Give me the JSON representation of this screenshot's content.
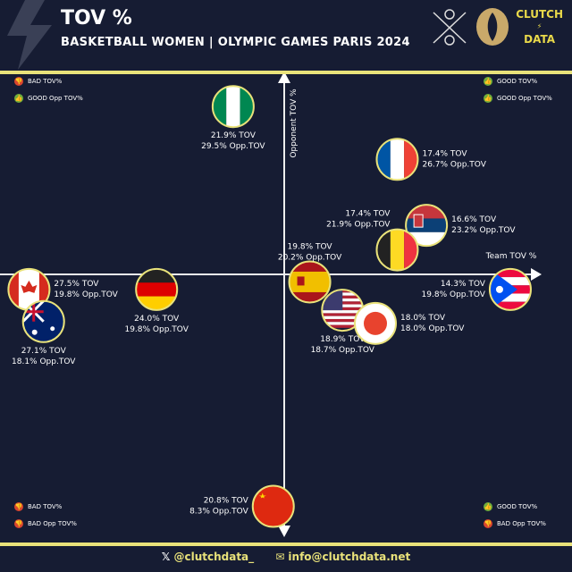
{
  "header": {
    "title": "TOV %",
    "subtitle": "BASKETBALL WOMEN | OLYMPIC GAMES PARIS 2024",
    "brand_top": "CLUTCH",
    "brand_bottom": "DATA"
  },
  "legends": {
    "top_left": [
      {
        "icon": "thumbs-down",
        "label": "BAD TOV%"
      },
      {
        "icon": "thumbs-up",
        "label": "GOOD Opp TOV%"
      }
    ],
    "top_right": [
      {
        "icon": "thumbs-up",
        "label": "GOOD TOV%"
      },
      {
        "icon": "thumbs-up",
        "label": "GOOD Opp TOV%"
      }
    ],
    "bottom_left": [
      {
        "icon": "thumbs-down",
        "label": "BAD TOV%"
      },
      {
        "icon": "thumbs-down",
        "label": "BAD Opp TOV%"
      }
    ],
    "bottom_right": [
      {
        "icon": "thumbs-up",
        "label": "GOOD TOV%"
      },
      {
        "icon": "thumbs-down",
        "label": "BAD Opp TOV%"
      }
    ]
  },
  "footer": {
    "twitter": "@clutchdata_",
    "email": "info@clutchdata.net"
  },
  "colors": {
    "background": "#161c33",
    "accent": "#e9e27a",
    "bad": "#d9452f",
    "good": "#6fae3c"
  },
  "chart_data": {
    "type": "scatter",
    "xlabel": "Team TOV %",
    "ylabel": "Opponent TOV %",
    "x_reversed": true,
    "x_center": 20.5,
    "y_center": 20.6,
    "points": [
      {
        "team": "Nigeria",
        "flag": "NGA",
        "x": 21.9,
        "y": 29.5,
        "label1": "21.9% TOV",
        "label2": "29.5% Opp.TOV"
      },
      {
        "team": "France",
        "flag": "FRA",
        "x": 17.4,
        "y": 26.7,
        "label1": "17.4% TOV",
        "label2": "26.7% Opp.TOV"
      },
      {
        "team": "Serbia",
        "flag": "SRB",
        "x": 16.6,
        "y": 23.2,
        "label1": "16.6% TOV",
        "label2": "23.2% Opp.TOV"
      },
      {
        "team": "Belgium",
        "flag": "BEL",
        "x": 17.4,
        "y": 21.9,
        "label1": "17.4% TOV",
        "label2": "21.9% Opp.TOV"
      },
      {
        "team": "Spain",
        "flag": "ESP",
        "x": 19.8,
        "y": 20.2,
        "label1": "19.8% TOV",
        "label2": "20.2% Opp.TOV"
      },
      {
        "team": "Puerto Rico",
        "flag": "PUR",
        "x": 14.3,
        "y": 19.8,
        "label1": "14.3% TOV",
        "label2": "19.8% Opp.TOV"
      },
      {
        "team": "Canada",
        "flag": "CAN",
        "x": 27.5,
        "y": 19.8,
        "label1": "27.5% TOV",
        "label2": "19.8% Opp.TOV"
      },
      {
        "team": "Germany",
        "flag": "GER",
        "x": 24.0,
        "y": 19.8,
        "label1": "24.0% TOV",
        "label2": "19.8% Opp.TOV"
      },
      {
        "team": "Australia",
        "flag": "AUS",
        "x": 27.1,
        "y": 18.1,
        "label1": "27.1% TOV",
        "label2": "18.1% Opp.TOV"
      },
      {
        "team": "USA",
        "flag": "USA",
        "x": 18.9,
        "y": 18.7,
        "label1": "18.9% TOV",
        "label2": "18.7% Opp.TOV"
      },
      {
        "team": "Japan",
        "flag": "JPN",
        "x": 18.0,
        "y": 18.0,
        "label1": "18.0% TOV",
        "label2": "18.0% Opp.TOV"
      },
      {
        "team": "China",
        "flag": "CHN",
        "x": 20.8,
        "y": 8.3,
        "label1": "20.8% TOV",
        "label2": "8.3% Opp.TOV"
      }
    ]
  }
}
